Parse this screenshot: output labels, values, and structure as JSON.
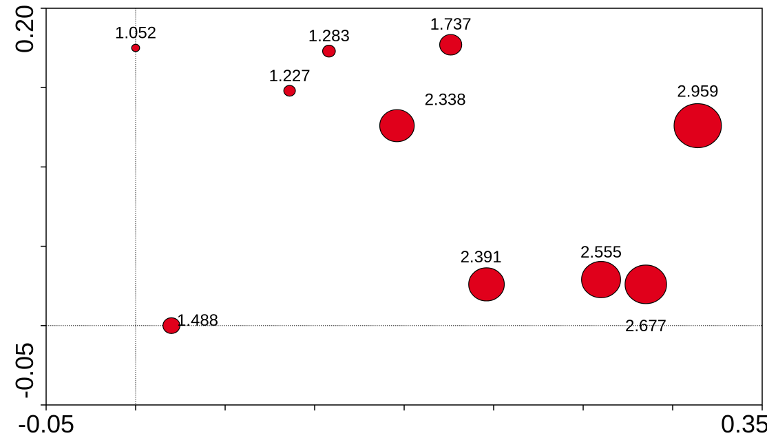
{
  "chart_data": {
    "type": "scatter",
    "title": "",
    "xlabel": "",
    "ylabel": "",
    "xlim": [
      -0.05,
      0.35
    ],
    "ylim": [
      -0.05,
      0.2
    ],
    "x_tick_labels": [
      "-0.05",
      "0.35"
    ],
    "y_tick_labels": [
      "-0.05",
      "0.20"
    ],
    "reference_lines": {
      "x": 0,
      "y": 0
    },
    "marker_color": "#e0001b",
    "marker_edge_color": "#000000",
    "points": [
      {
        "x": 0.0,
        "y": 0.175,
        "size": 1.052,
        "label": "1.052"
      },
      {
        "x": 0.108,
        "y": 0.173,
        "size": 1.283,
        "label": "1.283"
      },
      {
        "x": 0.176,
        "y": 0.177,
        "size": 1.737,
        "label": "1.737"
      },
      {
        "x": 0.086,
        "y": 0.148,
        "size": 1.227,
        "label": "1.227"
      },
      {
        "x": 0.146,
        "y": 0.126,
        "size": 2.338,
        "label": "2.338"
      },
      {
        "x": 0.314,
        "y": 0.126,
        "size": 2.959,
        "label": "2.959"
      },
      {
        "x": 0.196,
        "y": 0.026,
        "size": 2.391,
        "label": "2.391"
      },
      {
        "x": 0.26,
        "y": 0.029,
        "size": 2.555,
        "label": "2.555"
      },
      {
        "x": 0.285,
        "y": 0.026,
        "size": 2.677,
        "label": "2.677"
      },
      {
        "x": 0.02,
        "y": 0.0,
        "size": 1.488,
        "label": "1.488"
      }
    ]
  }
}
